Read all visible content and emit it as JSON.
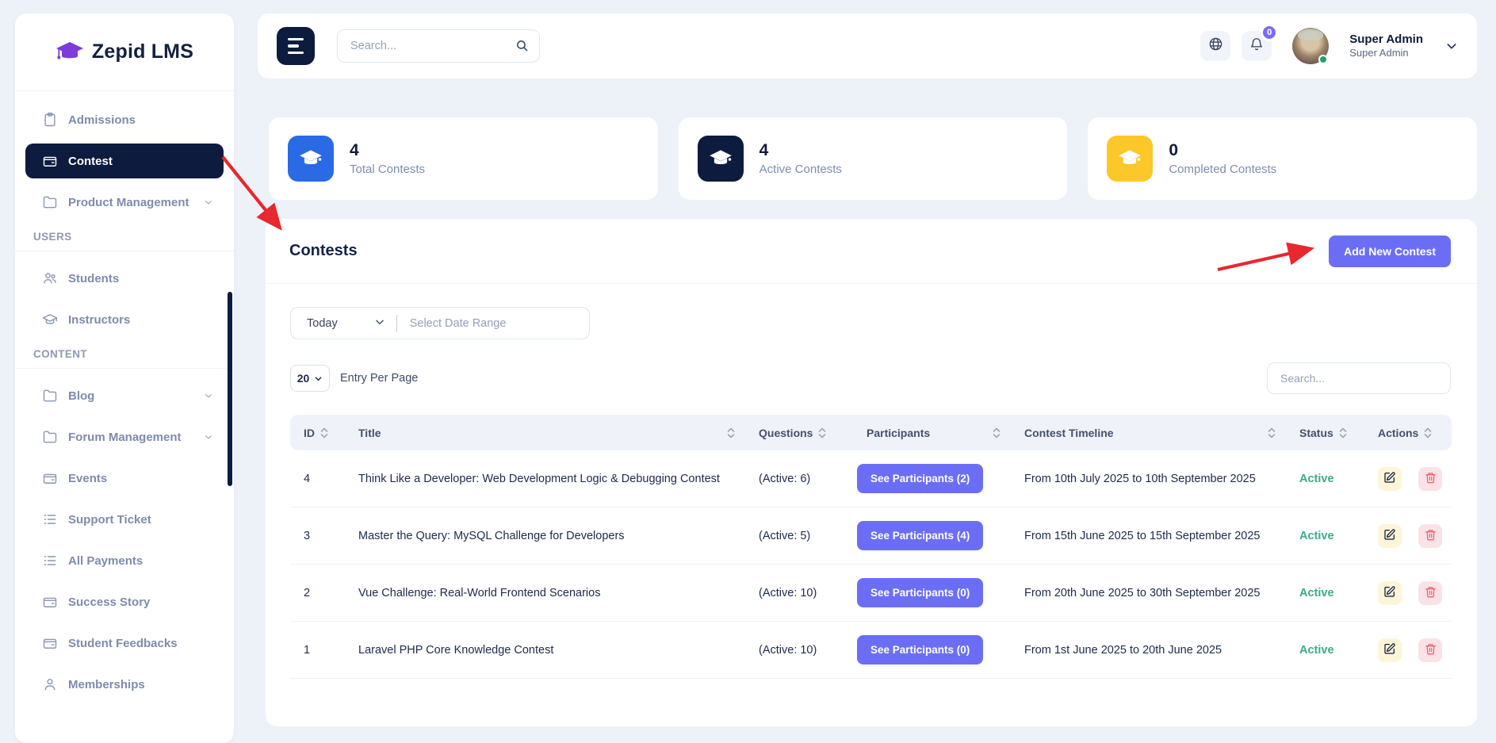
{
  "app": {
    "name": "Zepid LMS"
  },
  "topbar": {
    "search_placeholder": "Search...",
    "notification_badge": "0",
    "user_name": "Super Admin",
    "user_role": "Super Admin"
  },
  "sidebar": {
    "sections": [
      {
        "label": "",
        "items": [
          {
            "label": "Admissions",
            "icon": "clipboard-icon",
            "active": false,
            "expandable": false
          },
          {
            "label": "Contest",
            "icon": "wallet-icon",
            "active": true,
            "expandable": false
          },
          {
            "label": "Product Management",
            "icon": "folder-icon",
            "active": false,
            "expandable": true
          }
        ]
      },
      {
        "label": "USERS",
        "items": [
          {
            "label": "Students",
            "icon": "users-icon",
            "active": false,
            "expandable": false
          },
          {
            "label": "Instructors",
            "icon": "graduation-cap-icon",
            "active": false,
            "expandable": false
          }
        ]
      },
      {
        "label": "CONTENT",
        "items": [
          {
            "label": "Blog",
            "icon": "folder-icon",
            "active": false,
            "expandable": true
          },
          {
            "label": "Forum Management",
            "icon": "folder-icon",
            "active": false,
            "expandable": true
          },
          {
            "label": "Events",
            "icon": "wallet-icon",
            "active": false,
            "expandable": false
          },
          {
            "label": "Support Ticket",
            "icon": "list-icon",
            "active": false,
            "expandable": false
          },
          {
            "label": "All Payments",
            "icon": "list-icon",
            "active": false,
            "expandable": false
          },
          {
            "label": "Success Story",
            "icon": "wallet-icon",
            "active": false,
            "expandable": false
          },
          {
            "label": "Student Feedbacks",
            "icon": "wallet-icon",
            "active": false,
            "expandable": false
          },
          {
            "label": "Memberships",
            "icon": "user-icon",
            "active": false,
            "expandable": false
          }
        ]
      }
    ]
  },
  "stats": [
    {
      "value": "4",
      "label": "Total Contests",
      "color": "#2a6ae4"
    },
    {
      "value": "4",
      "label": "Active Contests",
      "color": "#0d1b3e"
    },
    {
      "value": "0",
      "label": "Completed Contests",
      "color": "#fcc729"
    }
  ],
  "contests": {
    "title": "Contests",
    "add_button_label": "Add New Contest",
    "filters": {
      "period": "Today",
      "date_range_placeholder": "Select Date Range",
      "per_page": "20",
      "per_page_label": "Entry Per Page",
      "search_placeholder": "Search..."
    },
    "table": {
      "columns": [
        "ID",
        "Title",
        "Questions",
        "Participants",
        "Contest Timeline",
        "Status",
        "Actions"
      ],
      "rows": [
        {
          "id": "4",
          "title": "Think Like a Developer: Web Development Logic & Debugging Contest",
          "questions": "(Active: 6)",
          "participants_label": "See Participants (2)",
          "timeline": "From 10th July 2025 to 10th September 2025",
          "status": "Active"
        },
        {
          "id": "3",
          "title": "Master the Query: MySQL Challenge for Developers",
          "questions": "(Active: 5)",
          "participants_label": "See Participants (4)",
          "timeline": "From 15th June 2025 to 15th September 2025",
          "status": "Active"
        },
        {
          "id": "2",
          "title": "Vue Challenge: Real-World Frontend Scenarios",
          "questions": "(Active: 10)",
          "participants_label": "See Participants (0)",
          "timeline": "From 20th June 2025 to 30th September 2025",
          "status": "Active"
        },
        {
          "id": "1",
          "title": "Laravel PHP Core Knowledge Contest",
          "questions": "(Active: 10)",
          "participants_label": "See Participants (0)",
          "timeline": "From 1st June 2025 to 20th June 2025",
          "status": "Active"
        }
      ]
    }
  },
  "colors": {
    "accent_indigo": "#6b6ef5",
    "navy": "#0d1b3e",
    "brand_purple": "#7c3bdb",
    "status_active_green": "#3bab84",
    "arrow_red": "#e8272e",
    "stat_blue": "#2a6ae4",
    "stat_yellow": "#fcc729"
  }
}
